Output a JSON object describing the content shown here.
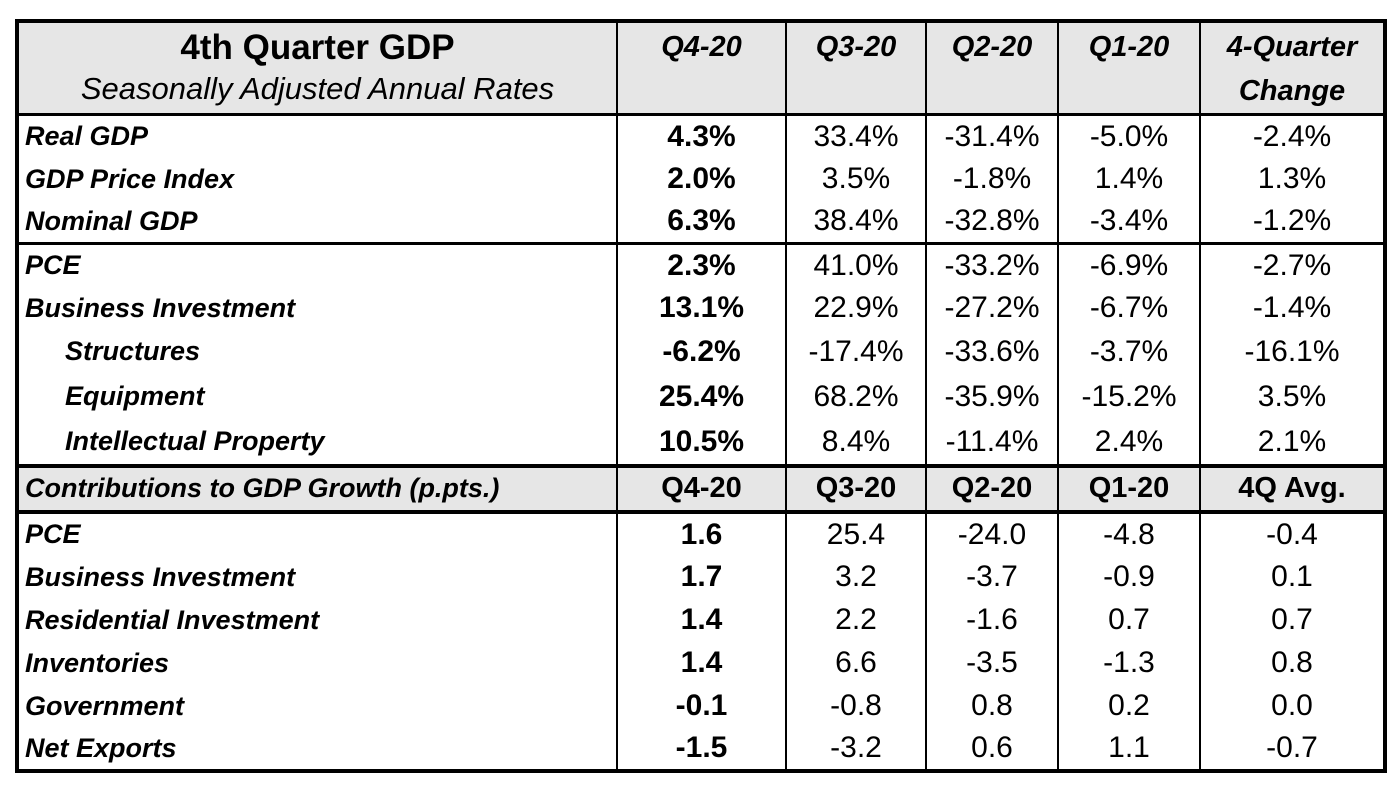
{
  "header": {
    "title": "4th Quarter GDP",
    "subtitle": "Seasonally Adjusted Annual Rates",
    "columns": [
      {
        "line1": "Q4-20",
        "line2": ""
      },
      {
        "line1": "Q3-20",
        "line2": ""
      },
      {
        "line1": "Q2-20",
        "line2": ""
      },
      {
        "line1": "Q1-20",
        "line2": ""
      },
      {
        "line1": "4-Quarter",
        "line2": "Change"
      }
    ]
  },
  "section1": [
    {
      "label": "Real GDP",
      "values": [
        "4.3%",
        "33.4%",
        "-31.4%",
        "-5.0%",
        "-2.4%"
      ]
    },
    {
      "label": "GDP Price Index",
      "values": [
        "2.0%",
        "3.5%",
        "-1.8%",
        "1.4%",
        "1.3%"
      ]
    },
    {
      "label": "Nominal GDP",
      "values": [
        "6.3%",
        "38.4%",
        "-32.8%",
        "-3.4%",
        "-1.2%"
      ]
    }
  ],
  "section2": [
    {
      "label": "PCE",
      "values": [
        "2.3%",
        "41.0%",
        "-33.2%",
        "-6.9%",
        "-2.7%"
      ]
    },
    {
      "label": "Business Investment",
      "values": [
        "13.1%",
        "22.9%",
        "-27.2%",
        "-6.7%",
        "-1.4%"
      ]
    },
    {
      "label": "Structures",
      "values": [
        "-6.2%",
        "-17.4%",
        "-33.6%",
        "-3.7%",
        "-16.1%"
      ]
    },
    {
      "label": "Equipment",
      "values": [
        "25.4%",
        "68.2%",
        "-35.9%",
        "-15.2%",
        "3.5%"
      ]
    },
    {
      "label": "Intellectual Property",
      "values": [
        "10.5%",
        "8.4%",
        "-11.4%",
        "2.4%",
        "2.1%"
      ]
    }
  ],
  "contributions_header": {
    "label": "Contributions to GDP Growth  (p.pts.)",
    "columns": [
      "Q4-20",
      "Q3-20",
      "Q2-20",
      "Q1-20",
      "4Q Avg."
    ]
  },
  "contributions": [
    {
      "label": "PCE",
      "values": [
        "1.6",
        "25.4",
        "-24.0",
        "-4.8",
        "-0.4"
      ]
    },
    {
      "label": "Business Investment",
      "values": [
        "1.7",
        "3.2",
        "-3.7",
        "-0.9",
        "0.1"
      ]
    },
    {
      "label": "Residential Investment",
      "values": [
        "1.4",
        "2.2",
        "-1.6",
        "0.7",
        "0.7"
      ]
    },
    {
      "label": "Inventories",
      "values": [
        "1.4",
        "6.6",
        "-3.5",
        "-1.3",
        "0.8"
      ]
    },
    {
      "label": "Government",
      "values": [
        "-0.1",
        "-0.8",
        "0.8",
        "0.2",
        "0.0"
      ]
    },
    {
      "label": "Net Exports",
      "values": [
        "-1.5",
        "-3.2",
        "0.6",
        "1.1",
        "-0.7"
      ]
    }
  ],
  "colors": {
    "header_background": "#e6e6e6",
    "border": "#000000"
  }
}
